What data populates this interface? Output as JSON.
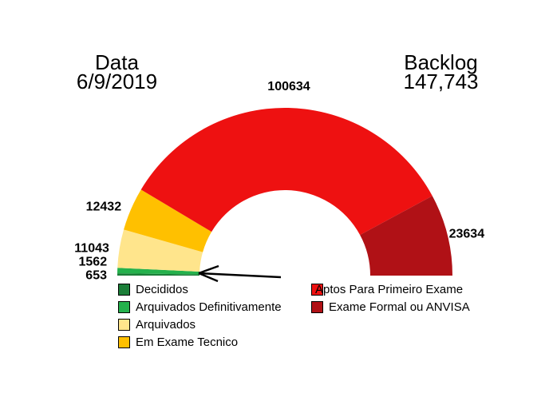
{
  "chart_data": {
    "type": "pie",
    "subtype": "half_donut_gauge",
    "title_left": {
      "label": "Data",
      "value": "6/9/2019"
    },
    "title_right": {
      "label": "Backlog",
      "value": "147,743"
    },
    "segments": [
      {
        "name": "Decididos",
        "value": 653,
        "color": "#1B7E38"
      },
      {
        "name": "Arquivados Definitivamente",
        "value": 1562,
        "color": "#24B14C"
      },
      {
        "name": "Arquivados",
        "value": 11043,
        "color": "#FFE58C"
      },
      {
        "name": "Em Exame Tecnico",
        "value": 12432,
        "color": "#FFC000"
      },
      {
        "name": "Aptos Para Primeiro Exame",
        "value": 100634,
        "color": "#EE1111"
      },
      {
        "name": "Exame Formal ou ANVISA",
        "value": 23634,
        "color": "#B01116"
      }
    ],
    "sweep_deg": 180,
    "direction": "left-to-right-over-top",
    "legend_left": [
      "Decididos",
      "Arquivados Definitivamente",
      "Arquivados",
      "Em Exame Tecnico"
    ],
    "legend_right": [
      "Aptos Para Primeiro Exame",
      "Exame Formal ou ANVISA"
    ],
    "has_annotation_arrow": true,
    "background_color": "#FFFFFF",
    "label_color": "#000000"
  }
}
